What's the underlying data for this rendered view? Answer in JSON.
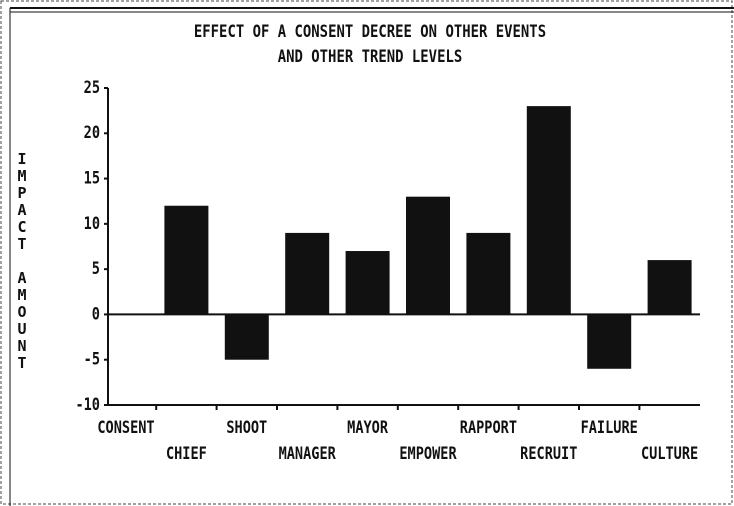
{
  "chart_data": {
    "type": "bar",
    "title": [
      "EFFECT OF A CONSENT DECREE ON OTHER EVENTS",
      "AND OTHER TREND LEVELS"
    ],
    "y_label": "IMPACT AMOUNT",
    "categories": [
      "CONSENT",
      "CHIEF",
      "SHOOT",
      "MANAGER",
      "MAYOR",
      "EMPOWER",
      "RAPPORT",
      "RECRUIT",
      "FAILURE",
      "CULTURE"
    ],
    "values": [
      0,
      12,
      -5,
      9,
      7,
      13,
      9,
      23,
      -6,
      6
    ],
    "color": "#111111",
    "ylim": [
      -10,
      25
    ],
    "yticks": [
      -10,
      -5,
      0,
      5,
      10,
      15,
      20,
      25
    ],
    "grid": false
  }
}
